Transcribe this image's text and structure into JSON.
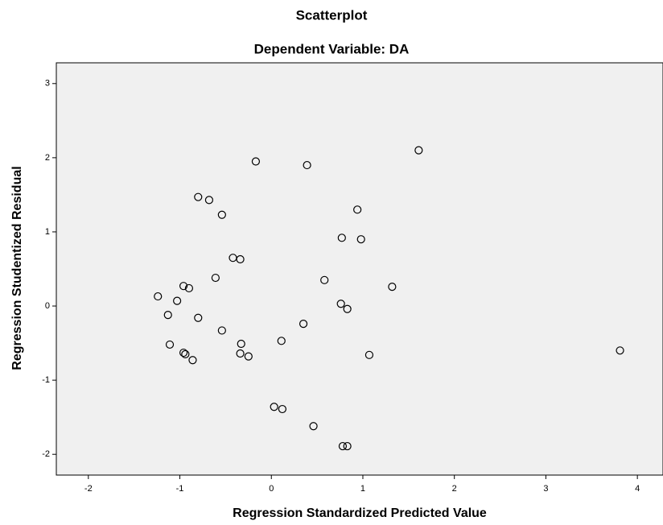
{
  "chart_data": {
    "type": "scatter",
    "title": "Scatterplot",
    "subtitle": "Dependent Variable: DA",
    "x_label": "Regression Standardized Predicted Value",
    "y_label": "Regression Studentized Residual",
    "x": [
      -0.17,
      0.39,
      1.61,
      -0.8,
      -0.68,
      -0.54,
      0.94,
      0.77,
      0.98,
      -0.42,
      -0.34,
      -0.61,
      0.58,
      1.32,
      -0.96,
      -0.9,
      -1.24,
      -1.03,
      0.76,
      0.83,
      -1.13,
      -0.8,
      0.35,
      -0.54,
      0.11,
      -0.33,
      -1.11,
      3.81,
      -0.96,
      -0.94,
      -0.34,
      -0.25,
      1.07,
      -0.86,
      0.03,
      0.12,
      0.46,
      0.78,
      0.83
    ],
    "y": [
      1.95,
      1.9,
      2.1,
      1.47,
      1.43,
      1.23,
      1.3,
      0.92,
      0.9,
      0.65,
      0.63,
      0.38,
      0.35,
      0.26,
      0.27,
      0.24,
      0.13,
      0.07,
      0.03,
      -0.04,
      -0.12,
      -0.16,
      -0.24,
      -0.33,
      -0.47,
      -0.51,
      -0.52,
      -0.6,
      -0.63,
      -0.65,
      -0.64,
      -0.68,
      -0.66,
      -0.73,
      -1.36,
      -1.39,
      -1.62,
      -1.89,
      -1.89
    ],
    "color": "#000000",
    "xlim": [
      -2.35,
      4.28
    ],
    "ylim": [
      -2.28,
      3.28
    ],
    "xticks": [
      -2,
      -1,
      0,
      1,
      2,
      3,
      4
    ],
    "yticks": [
      -2,
      -1,
      0,
      1,
      2,
      3
    ]
  }
}
